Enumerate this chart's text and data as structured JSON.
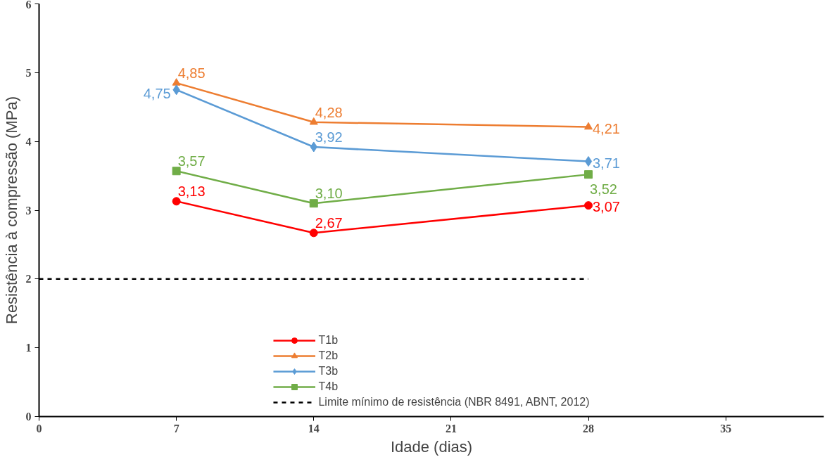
{
  "chart_data": {
    "type": "line",
    "xlabel": "Idade (dias)",
    "ylabel": "Resistência à compressão (MPa)",
    "x": [
      7,
      14,
      28
    ],
    "series": [
      {
        "name": "T1b",
        "color": "#ff0000",
        "marker": "circle",
        "values": [
          3.13,
          2.67,
          3.07
        ],
        "value_labels": [
          "3,13",
          "2,67",
          "3,07"
        ]
      },
      {
        "name": "T2b",
        "color": "#ed7d31",
        "marker": "triangle",
        "values": [
          4.85,
          4.28,
          4.21
        ],
        "value_labels": [
          "4,85",
          "4,28",
          "4,21"
        ]
      },
      {
        "name": "T3b",
        "color": "#5b9bd5",
        "marker": "diamond",
        "values": [
          4.75,
          3.92,
          3.71
        ],
        "value_labels": [
          "4,75",
          "3,92",
          "3,71"
        ]
      },
      {
        "name": "T4b",
        "color": "#70ad47",
        "marker": "square",
        "values": [
          3.57,
          3.1,
          3.52
        ],
        "value_labels": [
          "3,57",
          "3,10",
          "3,52"
        ]
      },
      {
        "name": "Limite mínimo de resistência (NBR 8491, ABNT, 2012)",
        "color": "#000000",
        "marker": "none",
        "line_style": "dashed",
        "x": [
          0,
          28
        ],
        "values": [
          2,
          2
        ]
      }
    ],
    "xlim": [
      0,
      40
    ],
    "xticks": [
      0,
      7,
      14,
      21,
      28,
      35
    ],
    "ylim": [
      0,
      6
    ],
    "yticks": [
      0,
      1,
      2,
      3,
      4,
      5,
      6
    ],
    "grid": false,
    "legend": "bottom"
  }
}
